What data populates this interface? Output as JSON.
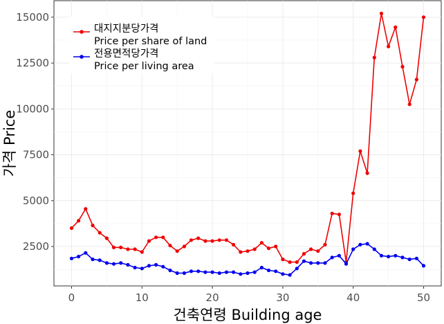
{
  "chart_data": {
    "type": "line",
    "title": "",
    "xlabel": "건축연령 Building age",
    "ylabel": "가격 Price",
    "xlim": [
      -2.5,
      52.5
    ],
    "ylim": [
      350,
      15900
    ],
    "x_ticks": [
      0,
      10,
      20,
      30,
      40,
      50
    ],
    "y_ticks": [
      2500,
      5000,
      7500,
      10000,
      12500,
      15000
    ],
    "y_tick_labels": [
      "2500",
      "5000",
      "7500",
      "10000",
      "12500",
      "15000"
    ],
    "grid": true,
    "legend_position": "top-left",
    "series": [
      {
        "name": "대지지분당가격\nPrice per share of land",
        "color": "#ee0000",
        "x": [
          0,
          1,
          2,
          3,
          4,
          5,
          6,
          7,
          8,
          9,
          10,
          11,
          12,
          13,
          14,
          15,
          16,
          17,
          18,
          19,
          20,
          21,
          22,
          23,
          24,
          25,
          26,
          27,
          28,
          29,
          30,
          31,
          32,
          33,
          34,
          35,
          36,
          37,
          38,
          39,
          40,
          41,
          42,
          43,
          44,
          45,
          46,
          47,
          48,
          49,
          50
        ],
        "values": [
          3500,
          3900,
          4550,
          3650,
          3250,
          2950,
          2450,
          2450,
          2350,
          2350,
          2200,
          2800,
          3000,
          3000,
          2550,
          2250,
          2500,
          2850,
          2950,
          2800,
          2800,
          2850,
          2850,
          2600,
          2200,
          2250,
          2350,
          2700,
          2400,
          2500,
          1800,
          1650,
          1650,
          2100,
          2350,
          2250,
          2600,
          4300,
          4250,
          1650,
          5400,
          7700,
          6500,
          12800,
          15200,
          13400,
          14450,
          12300,
          10250,
          11600,
          15000
        ]
      },
      {
        "name": "전용면적당가격\nPrice per living area",
        "color": "#0000ee",
        "x": [
          0,
          1,
          2,
          3,
          4,
          5,
          6,
          7,
          8,
          9,
          10,
          11,
          12,
          13,
          14,
          15,
          16,
          17,
          18,
          19,
          20,
          21,
          22,
          23,
          24,
          25,
          26,
          27,
          28,
          29,
          30,
          31,
          32,
          33,
          34,
          35,
          36,
          37,
          38,
          39,
          40,
          41,
          42,
          43,
          44,
          45,
          46,
          47,
          48,
          49,
          50
        ],
        "values": [
          1850,
          1950,
          2150,
          1800,
          1750,
          1600,
          1550,
          1600,
          1500,
          1350,
          1300,
          1450,
          1500,
          1400,
          1200,
          1050,
          1050,
          1150,
          1150,
          1100,
          1100,
          1050,
          1100,
          1100,
          1000,
          1050,
          1100,
          1350,
          1200,
          1150,
          1000,
          950,
          1300,
          1700,
          1600,
          1600,
          1600,
          1900,
          2000,
          1550,
          2350,
          2600,
          2650,
          2350,
          2000,
          1950,
          2000,
          1900,
          1800,
          1850,
          1450
        ]
      }
    ]
  }
}
